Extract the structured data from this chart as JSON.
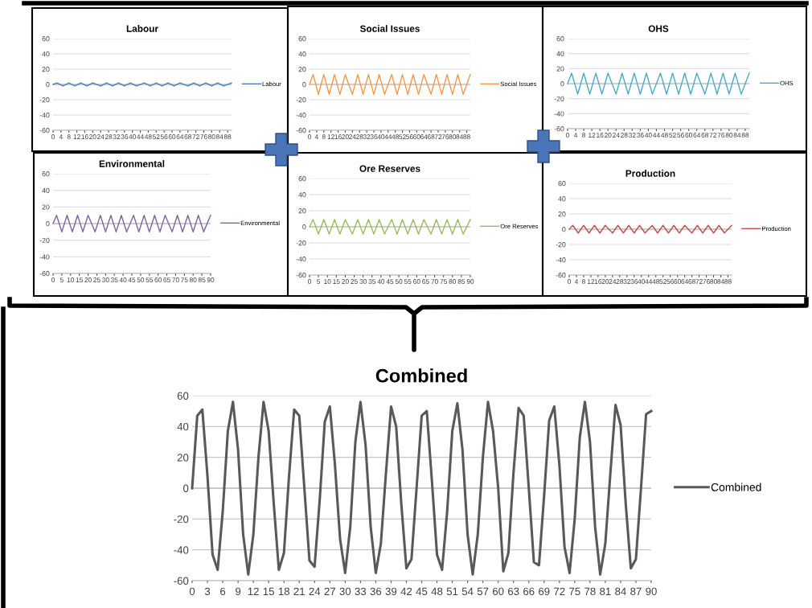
{
  "chart_data": [
    {
      "type": "line",
      "title": "Labour",
      "x": [
        0,
        2,
        5,
        8,
        11,
        14,
        17,
        20,
        24,
        27,
        30,
        33,
        36,
        39,
        42,
        46,
        49,
        52,
        55,
        58,
        61,
        64,
        68,
        71,
        74,
        77,
        80,
        83,
        86,
        90
      ],
      "series": [
        {
          "name": "Labour",
          "color": "#4a7ebb",
          "values": [
            0,
            2,
            -2,
            2,
            -2,
            2,
            -2,
            2,
            -2,
            2,
            -2,
            2,
            -2,
            2,
            -2,
            2,
            -2,
            2,
            -2,
            2,
            -2,
            2,
            -2,
            2,
            -2,
            2,
            -2,
            2,
            -2,
            2
          ]
        }
      ],
      "xlim": [
        0,
        90
      ],
      "xticks": [
        0,
        4,
        8,
        12,
        16,
        20,
        24,
        28,
        32,
        36,
        40,
        44,
        48,
        52,
        56,
        60,
        64,
        68,
        72,
        76,
        80,
        84,
        88
      ],
      "ylim": [
        -60,
        60
      ],
      "yticks": [
        -60,
        -40,
        -20,
        0,
        20,
        40,
        60
      ],
      "grid": "y",
      "legend": "right",
      "marker": "none",
      "line_style": "solid"
    },
    {
      "type": "line",
      "title": "Social Issues",
      "x": [
        0,
        2,
        5,
        8,
        11,
        14,
        17,
        20,
        24,
        27,
        30,
        33,
        36,
        39,
        42,
        46,
        49,
        52,
        55,
        58,
        61,
        64,
        68,
        71,
        74,
        77,
        80,
        83,
        86,
        90
      ],
      "series": [
        {
          "name": "Social Issues",
          "color": "#f79646",
          "values": [
            0,
            13,
            -13,
            13,
            -13,
            13,
            -13,
            13,
            -13,
            13,
            -13,
            13,
            -13,
            13,
            -13,
            13,
            -13,
            13,
            -13,
            13,
            -13,
            13,
            -13,
            13,
            -13,
            13,
            -13,
            13,
            -13,
            13
          ]
        }
      ],
      "xlim": [
        0,
        90
      ],
      "xticks": [
        0,
        4,
        8,
        12,
        16,
        20,
        24,
        28,
        32,
        36,
        40,
        44,
        48,
        52,
        56,
        60,
        64,
        68,
        72,
        76,
        80,
        84,
        88
      ],
      "ylim": [
        -60,
        60
      ],
      "yticks": [
        -60,
        -40,
        -20,
        0,
        20,
        40,
        60
      ],
      "grid": "y",
      "legend": "right",
      "marker": "none",
      "line_style": "solid"
    },
    {
      "type": "line",
      "title": "OHS",
      "x": [
        0,
        2,
        5,
        8,
        11,
        14,
        17,
        20,
        24,
        27,
        30,
        33,
        36,
        39,
        42,
        46,
        49,
        52,
        55,
        58,
        61,
        64,
        68,
        71,
        74,
        77,
        80,
        83,
        86,
        90
      ],
      "series": [
        {
          "name": "OHS",
          "color": "#4bacc6",
          "values": [
            0,
            14,
            -14,
            14,
            -14,
            14,
            -14,
            14,
            -14,
            14,
            -14,
            14,
            -14,
            14,
            -14,
            14,
            -14,
            14,
            -14,
            14,
            -14,
            14,
            -14,
            14,
            -14,
            14,
            -14,
            14,
            -14,
            14
          ]
        }
      ],
      "xlim": [
        0,
        90
      ],
      "xticks": [
        0,
        4,
        8,
        12,
        16,
        20,
        24,
        28,
        32,
        36,
        40,
        44,
        48,
        52,
        56,
        60,
        64,
        68,
        72,
        76,
        80,
        84,
        88
      ],
      "ylim": [
        -60,
        60
      ],
      "yticks": [
        -60,
        -40,
        -20,
        0,
        20,
        40,
        60
      ],
      "grid": "y",
      "legend": "right",
      "marker": "none",
      "line_style": "solid"
    },
    {
      "type": "line",
      "title": "Environmental",
      "x": [
        0,
        2,
        5,
        8,
        11,
        14,
        17,
        20,
        24,
        27,
        30,
        33,
        36,
        39,
        42,
        46,
        49,
        52,
        55,
        58,
        61,
        64,
        68,
        71,
        74,
        77,
        80,
        83,
        86,
        90
      ],
      "series": [
        {
          "name": "Environmental",
          "color": "#8064a2",
          "values": [
            0,
            10,
            -10,
            10,
            -10,
            10,
            -10,
            10,
            -10,
            10,
            -10,
            10,
            -10,
            10,
            -10,
            10,
            -10,
            10,
            -10,
            10,
            -10,
            10,
            -10,
            10,
            -10,
            10,
            -10,
            10,
            -10,
            10
          ]
        }
      ],
      "xlim": [
        0,
        90
      ],
      "xticks": [
        0,
        5,
        10,
        15,
        20,
        25,
        30,
        35,
        40,
        45,
        50,
        55,
        60,
        65,
        70,
        75,
        80,
        85,
        90
      ],
      "ylim": [
        -60,
        60
      ],
      "yticks": [
        -60,
        -40,
        -20,
        0,
        20,
        40,
        60
      ],
      "grid": "y",
      "legend": "right",
      "marker": "none",
      "line_style": "solid"
    },
    {
      "type": "line",
      "title": "Ore Reserves",
      "x": [
        0,
        2,
        5,
        8,
        11,
        14,
        17,
        20,
        24,
        27,
        30,
        33,
        36,
        39,
        42,
        46,
        49,
        52,
        55,
        58,
        61,
        64,
        68,
        71,
        74,
        77,
        80,
        83,
        86,
        90
      ],
      "series": [
        {
          "name": "Ore Reserves",
          "color": "#9bbb59",
          "values": [
            0,
            9,
            -9,
            9,
            -9,
            9,
            -9,
            9,
            -9,
            9,
            -9,
            9,
            -9,
            9,
            -9,
            9,
            -9,
            9,
            -9,
            9,
            -9,
            9,
            -9,
            9,
            -9,
            9,
            -9,
            9,
            -9,
            9
          ]
        }
      ],
      "xlim": [
        0,
        90
      ],
      "xticks": [
        0,
        5,
        10,
        15,
        20,
        25,
        30,
        35,
        40,
        45,
        50,
        55,
        60,
        65,
        70,
        75,
        80,
        85,
        90
      ],
      "ylim": [
        -60,
        60
      ],
      "yticks": [
        -60,
        -40,
        -20,
        0,
        20,
        40,
        60
      ],
      "grid": "y",
      "legend": "right",
      "marker": "none",
      "line_style": "solid"
    },
    {
      "type": "line",
      "title": "Production",
      "x": [
        0,
        2,
        5,
        8,
        11,
        14,
        17,
        20,
        24,
        27,
        30,
        33,
        36,
        39,
        42,
        46,
        49,
        52,
        55,
        58,
        61,
        64,
        68,
        71,
        74,
        77,
        80,
        83,
        86,
        90
      ],
      "series": [
        {
          "name": "Production",
          "color": "#c0504d",
          "values": [
            0,
            5,
            -5,
            5,
            -5,
            5,
            -5,
            5,
            -5,
            5,
            -5,
            5,
            -5,
            5,
            -5,
            5,
            -5,
            5,
            -5,
            5,
            -5,
            5,
            -5,
            5,
            -5,
            5,
            -5,
            5,
            -5,
            5
          ]
        }
      ],
      "xlim": [
        0,
        90
      ],
      "xticks": [
        0,
        4,
        8,
        12,
        16,
        20,
        24,
        28,
        32,
        36,
        40,
        44,
        48,
        52,
        56,
        60,
        64,
        68,
        72,
        76,
        80,
        84,
        88
      ],
      "ylim": [
        -60,
        60
      ],
      "yticks": [
        -60,
        -40,
        -20,
        0,
        20,
        40,
        60
      ],
      "grid": "y",
      "legend": "right",
      "marker": "none",
      "line_style": "solid"
    },
    {
      "type": "line",
      "title": "Combined",
      "x": [
        0,
        1,
        2,
        3,
        4,
        5,
        6,
        7,
        8,
        9,
        10,
        11,
        12,
        13,
        14,
        15,
        16,
        17,
        18,
        19,
        20,
        21,
        22,
        23,
        24,
        25,
        26,
        27,
        28,
        29,
        30,
        31,
        32,
        33,
        34,
        35,
        36,
        37,
        38,
        39,
        40,
        41,
        42,
        43,
        44,
        45,
        46,
        47,
        48,
        49,
        50,
        51,
        52,
        53,
        54,
        55,
        56,
        57,
        58,
        59,
        60,
        61,
        62,
        63,
        64,
        65,
        66,
        67,
        68,
        69,
        70,
        71,
        72,
        73,
        74,
        75,
        76,
        77,
        78,
        79,
        80,
        81,
        82,
        83,
        84,
        85,
        86,
        87,
        88,
        89,
        90
      ],
      "series": [
        {
          "name": "Combined",
          "color": "#595959",
          "values": [
            0,
            47,
            51,
            8,
            -43,
            -53,
            -15,
            37,
            56,
            25,
            -30,
            -56,
            -30,
            20,
            56,
            37,
            -10,
            -53,
            -42,
            8,
            51,
            47,
            0,
            -47,
            -51,
            -8,
            43,
            53,
            15,
            -33,
            -55,
            -25,
            30,
            56,
            28,
            -25,
            -55,
            -36,
            10,
            53,
            40,
            -10,
            -52,
            -46,
            0,
            47,
            50,
            5,
            -43,
            -53,
            -15,
            37,
            55,
            25,
            -30,
            -56,
            -30,
            20,
            56,
            37,
            0,
            -54,
            -42,
            10,
            52,
            47,
            0,
            -48,
            -50,
            -5,
            44,
            53,
            15,
            -38,
            -55,
            -20,
            33,
            56,
            30,
            -25,
            -56,
            -36,
            10,
            54,
            41,
            -10,
            -52,
            -46,
            0,
            48,
            50
          ]
        }
      ],
      "xlim": [
        0,
        90
      ],
      "xticks": [
        0,
        3,
        6,
        9,
        12,
        15,
        18,
        21,
        24,
        27,
        30,
        33,
        36,
        39,
        42,
        45,
        48,
        51,
        54,
        57,
        60,
        63,
        66,
        69,
        72,
        75,
        78,
        81,
        84,
        87,
        90
      ],
      "ylim": [
        -60,
        60
      ],
      "yticks": [
        -60,
        -40,
        -20,
        0,
        20,
        40,
        60
      ],
      "grid": "y",
      "legend": "right",
      "marker": "none",
      "line_style": "solid"
    }
  ]
}
